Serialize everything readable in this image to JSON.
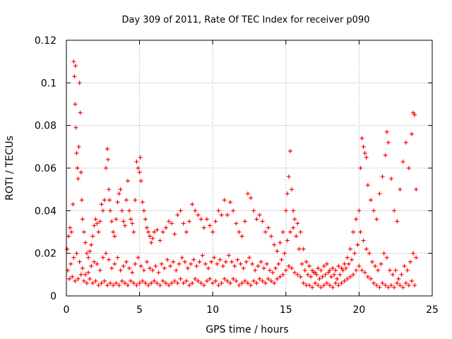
{
  "chart_data": {
    "type": "scatter",
    "title": "Day 309 of 2011, Rate Of TEC Index for receiver p090",
    "xlabel": "GPS time / hours",
    "ylabel": "ROTI / TECUs",
    "xlim": [
      0,
      25
    ],
    "ylim": [
      0,
      0.12
    ],
    "x_ticks": [
      0,
      5,
      10,
      15,
      20,
      25
    ],
    "x_tick_labels": [
      "0",
      "5",
      "10",
      "15",
      "20",
      "25"
    ],
    "y_ticks": [
      0,
      0.02,
      0.04,
      0.06,
      0.08,
      0.1,
      0.12
    ],
    "y_tick_labels": [
      "0",
      "0.02",
      "0.04",
      "0.06",
      "0.08",
      "0.1",
      "0.12"
    ],
    "grid": true,
    "marker": "plus",
    "color": "#ff0000",
    "series": [
      {
        "x": [
          0.05,
          0.15,
          0.25,
          0.35,
          0.45,
          0.5,
          0.55,
          0.6,
          0.62,
          0.65,
          0.7,
          0.75,
          0.8,
          0.85,
          0.9,
          0.95,
          1.0,
          1.05,
          1.1,
          1.2,
          1.3,
          1.4,
          1.5,
          1.6,
          1.7,
          1.8,
          1.9,
          2.0,
          2.1,
          2.2,
          2.3,
          2.4,
          2.5,
          2.6,
          2.7,
          2.8,
          2.85,
          2.9,
          2.95,
          3.0,
          3.1,
          3.2,
          3.3,
          3.4,
          3.5,
          3.6,
          3.7,
          3.8,
          3.9,
          4.0,
          4.1,
          4.2,
          4.3,
          4.4,
          4.5,
          4.6,
          4.7,
          4.8,
          4.9,
          5.0,
          5.05,
          5.1,
          5.2,
          5.3,
          5.4,
          5.5,
          5.6,
          5.7,
          5.8,
          5.9,
          6.0,
          6.2,
          6.4,
          6.6,
          6.8,
          7.0,
          7.2,
          7.4,
          7.6,
          7.8,
          8.0,
          8.2,
          8.4,
          8.6,
          8.8,
          9.0,
          9.2,
          9.4,
          9.6,
          9.8,
          10.0,
          10.2,
          10.4,
          10.6,
          10.8,
          11.0,
          11.2,
          11.4,
          11.6,
          11.8,
          12.0,
          12.2,
          12.4,
          12.6,
          12.8,
          13.0,
          13.2,
          13.4,
          13.6,
          13.8,
          14.0,
          14.2,
          14.4,
          14.6,
          14.8,
          15.0,
          15.1,
          15.2,
          15.3,
          15.4,
          15.5,
          15.6,
          15.8,
          16.0,
          16.2,
          16.4,
          16.6,
          16.8,
          17.0,
          17.2,
          17.4,
          17.6,
          17.8,
          18.0,
          18.2,
          18.4,
          18.6,
          18.8,
          19.0,
          19.2,
          19.4,
          19.6,
          19.8,
          20.0,
          20.1,
          20.2,
          20.3,
          20.4,
          20.5,
          20.6,
          20.8,
          21.0,
          21.2,
          21.4,
          21.6,
          21.8,
          21.9,
          22.0,
          22.2,
          22.4,
          22.6,
          22.8,
          23.0,
          23.2,
          23.4,
          23.6,
          23.7,
          23.8,
          23.9
        ],
        "y": [
          0.022,
          0.028,
          0.032,
          0.03,
          0.043,
          0.11,
          0.103,
          0.09,
          0.108,
          0.079,
          0.067,
          0.06,
          0.055,
          0.07,
          0.1,
          0.086,
          0.058,
          0.045,
          0.036,
          0.03,
          0.025,
          0.02,
          0.018,
          0.021,
          0.024,
          0.028,
          0.033,
          0.036,
          0.034,
          0.03,
          0.035,
          0.043,
          0.04,
          0.045,
          0.06,
          0.069,
          0.064,
          0.05,
          0.045,
          0.04,
          0.035,
          0.03,
          0.028,
          0.036,
          0.044,
          0.048,
          0.05,
          0.04,
          0.035,
          0.033,
          0.045,
          0.054,
          0.04,
          0.036,
          0.034,
          0.03,
          0.045,
          0.063,
          0.06,
          0.058,
          0.065,
          0.054,
          0.044,
          0.04,
          0.036,
          0.032,
          0.03,
          0.028,
          0.025,
          0.027,
          0.03,
          0.031,
          0.026,
          0.03,
          0.032,
          0.035,
          0.034,
          0.029,
          0.038,
          0.04,
          0.034,
          0.03,
          0.035,
          0.043,
          0.04,
          0.038,
          0.036,
          0.032,
          0.036,
          0.033,
          0.03,
          0.035,
          0.04,
          0.038,
          0.045,
          0.038,
          0.044,
          0.04,
          0.034,
          0.03,
          0.028,
          0.035,
          0.048,
          0.046,
          0.04,
          0.036,
          0.038,
          0.035,
          0.03,
          0.032,
          0.028,
          0.024,
          0.021,
          0.025,
          0.03,
          0.04,
          0.048,
          0.056,
          0.068,
          0.05,
          0.04,
          0.036,
          0.034,
          0.03,
          0.022,
          0.016,
          0.014,
          0.012,
          0.011,
          0.013,
          0.012,
          0.014,
          0.015,
          0.012,
          0.013,
          0.012,
          0.014,
          0.013,
          0.015,
          0.018,
          0.022,
          0.03,
          0.036,
          0.04,
          0.06,
          0.074,
          0.07,
          0.067,
          0.065,
          0.052,
          0.045,
          0.04,
          0.036,
          0.048,
          0.056,
          0.066,
          0.077,
          0.072,
          0.055,
          0.04,
          0.035,
          0.05,
          0.063,
          0.072,
          0.06,
          0.076,
          0.086,
          0.085,
          0.05
        ]
      },
      {
        "x": [
          0.1,
          0.3,
          0.5,
          0.7,
          0.9,
          1.1,
          1.3,
          1.5,
          1.7,
          1.9,
          2.1,
          2.3,
          2.5,
          2.7,
          2.9,
          3.1,
          3.3,
          3.5,
          3.7,
          3.9,
          4.1,
          4.3,
          4.5,
          4.7,
          4.9,
          5.1,
          5.3,
          5.5,
          5.7,
          5.9,
          6.1,
          6.3,
          6.5,
          6.7,
          6.9,
          7.1,
          7.3,
          7.5,
          7.7,
          7.9,
          8.1,
          8.3,
          8.5,
          8.7,
          8.9,
          9.1,
          9.3,
          9.5,
          9.7,
          9.9,
          10.1,
          10.3,
          10.5,
          10.7,
          10.9,
          11.1,
          11.3,
          11.5,
          11.7,
          11.9,
          12.1,
          12.3,
          12.5,
          12.7,
          12.9,
          13.1,
          13.3,
          13.5,
          13.7,
          13.9,
          14.1,
          14.3,
          14.5,
          14.7,
          14.9,
          15.1,
          15.3,
          15.5,
          15.7,
          15.9,
          16.1,
          16.3,
          16.5,
          16.7,
          16.9,
          17.1,
          17.3,
          17.5,
          17.7,
          17.9,
          18.1,
          18.3,
          18.5,
          18.7,
          18.9,
          19.1,
          19.3,
          19.5,
          19.7,
          19.9,
          20.1,
          20.3,
          20.5,
          20.7,
          20.9,
          21.1,
          21.3,
          21.5,
          21.7,
          21.9,
          22.1,
          22.3,
          22.5,
          22.7,
          22.9,
          23.1,
          23.3,
          23.5,
          23.7,
          23.9
        ],
        "y": [
          0.012,
          0.015,
          0.018,
          0.02,
          0.016,
          0.013,
          0.01,
          0.011,
          0.014,
          0.016,
          0.015,
          0.012,
          0.018,
          0.02,
          0.017,
          0.013,
          0.015,
          0.018,
          0.012,
          0.014,
          0.016,
          0.013,
          0.011,
          0.015,
          0.018,
          0.014,
          0.012,
          0.016,
          0.013,
          0.012,
          0.014,
          0.011,
          0.015,
          0.013,
          0.017,
          0.014,
          0.016,
          0.012,
          0.015,
          0.018,
          0.016,
          0.013,
          0.015,
          0.017,
          0.014,
          0.016,
          0.019,
          0.015,
          0.013,
          0.016,
          0.018,
          0.015,
          0.017,
          0.014,
          0.016,
          0.019,
          0.016,
          0.014,
          0.017,
          0.015,
          0.013,
          0.016,
          0.018,
          0.015,
          0.012,
          0.014,
          0.016,
          0.013,
          0.015,
          0.012,
          0.011,
          0.013,
          0.015,
          0.017,
          0.02,
          0.026,
          0.03,
          0.032,
          0.028,
          0.022,
          0.015,
          0.012,
          0.01,
          0.009,
          0.011,
          0.01,
          0.008,
          0.009,
          0.01,
          0.011,
          0.009,
          0.01,
          0.008,
          0.01,
          0.012,
          0.013,
          0.015,
          0.017,
          0.02,
          0.024,
          0.03,
          0.026,
          0.022,
          0.02,
          0.016,
          0.014,
          0.012,
          0.015,
          0.02,
          0.018,
          0.012,
          0.01,
          0.012,
          0.008,
          0.01,
          0.014,
          0.012,
          0.016,
          0.02,
          0.018
        ]
      },
      {
        "x": [
          0.2,
          0.4,
          0.6,
          0.8,
          1.0,
          1.2,
          1.4,
          1.6,
          1.8,
          2.0,
          2.2,
          2.4,
          2.6,
          2.8,
          3.0,
          3.2,
          3.4,
          3.6,
          3.8,
          4.0,
          4.2,
          4.4,
          4.6,
          4.8,
          5.0,
          5.2,
          5.4,
          5.6,
          5.8,
          6.0,
          6.2,
          6.4,
          6.6,
          6.8,
          7.0,
          7.2,
          7.4,
          7.6,
          7.8,
          8.0,
          8.2,
          8.4,
          8.6,
          8.8,
          9.0,
          9.2,
          9.4,
          9.6,
          9.8,
          10.0,
          10.2,
          10.4,
          10.6,
          10.8,
          11.0,
          11.2,
          11.4,
          11.6,
          11.8,
          12.0,
          12.2,
          12.4,
          12.6,
          12.8,
          13.0,
          13.2,
          13.4,
          13.6,
          13.8,
          14.0,
          14.2,
          14.4,
          14.6,
          14.8,
          15.0,
          15.2,
          15.4,
          15.6,
          15.8,
          16.0,
          16.2,
          16.4,
          16.6,
          16.8,
          17.0,
          17.2,
          17.4,
          17.6,
          17.8,
          18.0,
          18.2,
          18.4,
          18.6,
          18.8,
          19.0,
          19.2,
          19.4,
          19.6,
          19.8,
          20.0,
          20.2,
          20.4,
          20.6,
          20.8,
          21.0,
          21.2,
          21.4,
          21.6,
          21.8,
          22.0,
          22.2,
          22.4,
          22.6,
          22.8,
          23.0,
          23.2,
          23.4,
          23.6,
          23.8
        ],
        "y": [
          0.008,
          0.009,
          0.007,
          0.008,
          0.01,
          0.007,
          0.006,
          0.008,
          0.006,
          0.007,
          0.005,
          0.006,
          0.007,
          0.005,
          0.006,
          0.005,
          0.006,
          0.005,
          0.007,
          0.006,
          0.005,
          0.007,
          0.006,
          0.005,
          0.006,
          0.007,
          0.006,
          0.005,
          0.006,
          0.007,
          0.006,
          0.005,
          0.007,
          0.006,
          0.005,
          0.006,
          0.007,
          0.006,
          0.008,
          0.006,
          0.007,
          0.005,
          0.006,
          0.008,
          0.007,
          0.006,
          0.005,
          0.007,
          0.008,
          0.006,
          0.007,
          0.005,
          0.006,
          0.008,
          0.007,
          0.006,
          0.008,
          0.007,
          0.005,
          0.006,
          0.007,
          0.006,
          0.005,
          0.007,
          0.006,
          0.008,
          0.007,
          0.006,
          0.008,
          0.007,
          0.006,
          0.008,
          0.009,
          0.01,
          0.012,
          0.014,
          0.013,
          0.011,
          0.01,
          0.009,
          0.006,
          0.005,
          0.005,
          0.004,
          0.006,
          0.005,
          0.004,
          0.005,
          0.006,
          0.005,
          0.004,
          0.006,
          0.005,
          0.006,
          0.007,
          0.008,
          0.009,
          0.01,
          0.012,
          0.014,
          0.012,
          0.011,
          0.009,
          0.008,
          0.006,
          0.005,
          0.004,
          0.006,
          0.005,
          0.004,
          0.005,
          0.004,
          0.006,
          0.005,
          0.004,
          0.006,
          0.005,
          0.007,
          0.005
        ]
      }
    ]
  }
}
